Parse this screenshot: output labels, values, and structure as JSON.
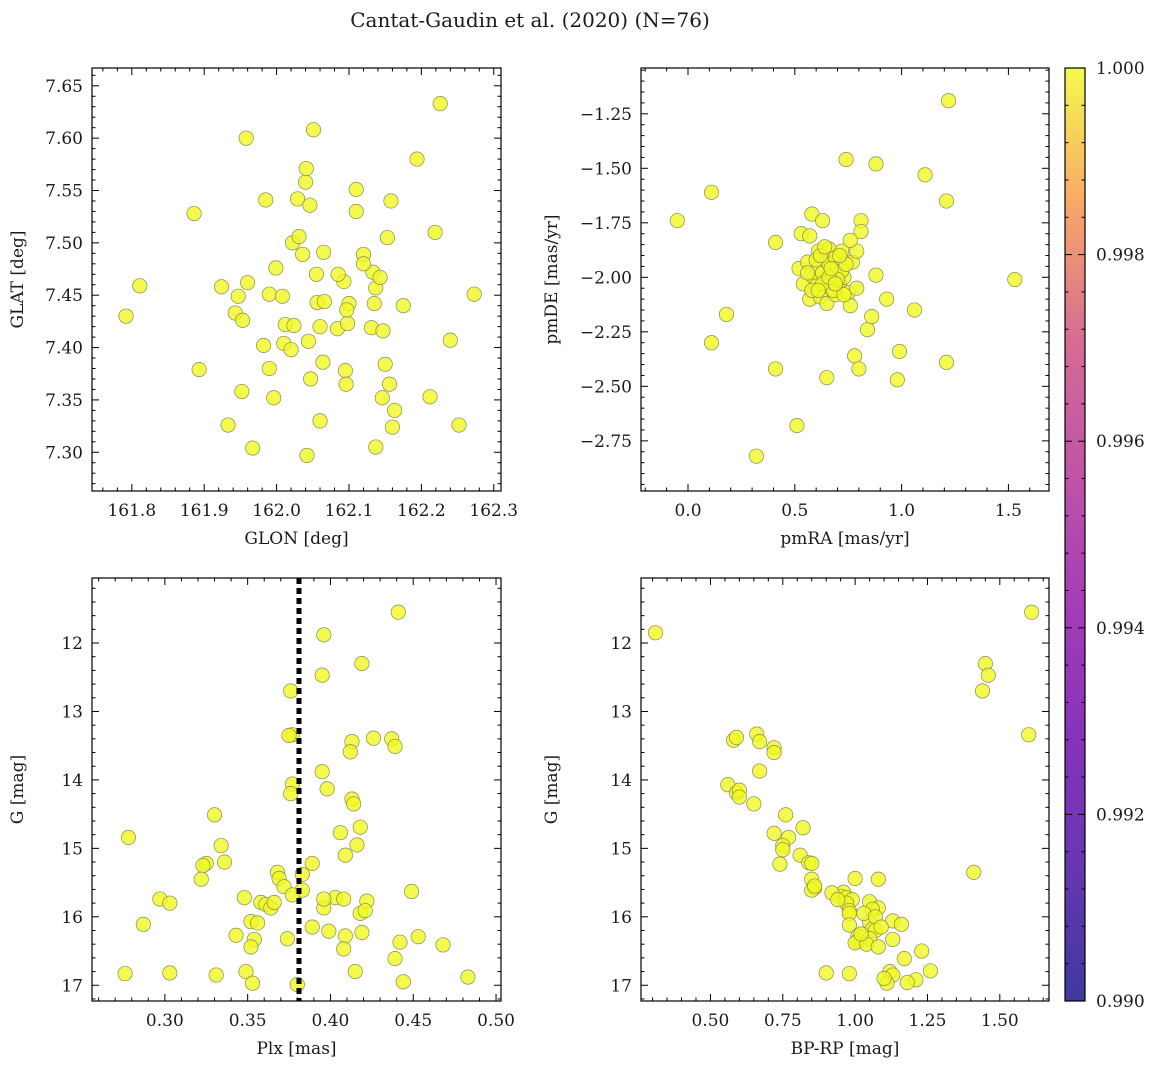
{
  "figure": {
    "title": "Cantat-Gaudin et al. (2020) (N=76)",
    "colorbar": {
      "ticks": [
        "0.990",
        "0.992",
        "0.994",
        "0.996",
        "0.998",
        "1.000"
      ],
      "range": [
        0.99,
        1.0
      ],
      "colormap": "plasma"
    },
    "marker_color": "#f0f921",
    "marker_edge": "#8a8a5a"
  },
  "chart_data": [
    {
      "type": "scatter",
      "id": "glon-glat",
      "xlabel": "GLON [deg]",
      "ylabel": "GLAT [deg]",
      "xlim": [
        161.745,
        162.31
      ],
      "ylim": [
        7.263,
        7.667
      ],
      "xticks": [
        161.8,
        161.9,
        162.0,
        162.1,
        162.2,
        162.3
      ],
      "yticks": [
        7.3,
        7.35,
        7.4,
        7.45,
        7.5,
        7.55,
        7.6,
        7.65
      ],
      "xtick_labels": [
        "161.8",
        "161.9",
        "162.0",
        "162.1",
        "162.2",
        "162.3"
      ],
      "ytick_labels": [
        "7.30",
        "7.35",
        "7.40",
        "7.45",
        "7.50",
        "7.55",
        "7.60",
        "7.65"
      ],
      "points": [
        [
          161.792,
          7.43
        ],
        [
          161.811,
          7.459
        ],
        [
          161.886,
          7.528
        ],
        [
          161.893,
          7.379
        ],
        [
          161.924,
          7.458
        ],
        [
          161.933,
          7.326
        ],
        [
          161.943,
          7.433
        ],
        [
          161.947,
          7.449
        ],
        [
          161.952,
          7.358
        ],
        [
          161.953,
          7.426
        ],
        [
          161.958,
          7.6
        ],
        [
          161.96,
          7.462
        ],
        [
          161.967,
          7.304
        ],
        [
          161.982,
          7.402
        ],
        [
          161.985,
          7.541
        ],
        [
          161.99,
          7.451
        ],
        [
          161.996,
          7.352
        ],
        [
          161.999,
          7.476
        ],
        [
          162.008,
          7.449
        ],
        [
          162.01,
          7.404
        ],
        [
          162.012,
          7.422
        ],
        [
          162.02,
          7.398
        ],
        [
          162.022,
          7.5
        ],
        [
          162.024,
          7.421
        ],
        [
          162.029,
          7.542
        ],
        [
          162.031,
          7.506
        ],
        [
          162.036,
          7.489
        ],
        [
          162.04,
          7.558
        ],
        [
          162.041,
          7.571
        ],
        [
          162.042,
          7.297
        ],
        [
          162.044,
          7.406
        ],
        [
          162.046,
          7.536
        ],
        [
          162.047,
          7.37
        ],
        [
          162.051,
          7.608
        ],
        [
          162.055,
          7.47
        ],
        [
          162.056,
          7.443
        ],
        [
          162.06,
          7.33
        ],
        [
          162.064,
          7.386
        ],
        [
          162.065,
          7.491
        ],
        [
          162.066,
          7.444
        ],
        [
          162.084,
          7.418
        ],
        [
          162.093,
          7.463
        ],
        [
          162.095,
          7.378
        ],
        [
          162.096,
          7.365
        ],
        [
          162.098,
          7.423
        ],
        [
          162.1,
          7.442
        ],
        [
          162.097,
          7.436
        ],
        [
          162.11,
          7.551
        ],
        [
          162.11,
          7.53
        ],
        [
          162.12,
          7.489
        ],
        [
          162.131,
          7.419
        ],
        [
          162.133,
          7.472
        ],
        [
          162.135,
          7.442
        ],
        [
          162.137,
          7.457
        ],
        [
          162.137,
          7.305
        ],
        [
          162.143,
          7.467
        ],
        [
          162.146,
          7.352
        ],
        [
          162.147,
          7.416
        ],
        [
          162.15,
          7.384
        ],
        [
          162.153,
          7.505
        ],
        [
          162.156,
          7.365
        ],
        [
          162.158,
          7.54
        ],
        [
          162.16,
          7.324
        ],
        [
          162.163,
          7.34
        ],
        [
          162.194,
          7.58
        ],
        [
          162.212,
          7.353
        ],
        [
          162.219,
          7.51
        ],
        [
          162.226,
          7.633
        ],
        [
          162.24,
          7.407
        ],
        [
          162.252,
          7.326
        ],
        [
          162.273,
          7.451
        ],
        [
          162.12,
          7.48
        ],
        [
          162.085,
          7.47
        ],
        [
          162.06,
          7.42
        ],
        [
          161.99,
          7.38
        ],
        [
          162.175,
          7.44
        ]
      ]
    },
    {
      "type": "scatter",
      "id": "pmra-pmde",
      "xlabel": "pmRA [mas/yr]",
      "ylabel": "pmDE [mas/yr]",
      "xlim": [
        -0.22,
        1.69
      ],
      "ylim": [
        -2.98,
        -1.04
      ],
      "xticks": [
        0.0,
        0.5,
        1.0,
        1.5
      ],
      "yticks": [
        -2.75,
        -2.5,
        -2.25,
        -2.0,
        -1.75,
        -1.5,
        -1.25
      ],
      "xtick_labels": [
        "0.0",
        "0.5",
        "1.0",
        "1.5"
      ],
      "ytick_labels": [
        "−2.75",
        "−2.50",
        "−2.25",
        "−2.00",
        "−1.75",
        "−1.50",
        "−1.25"
      ],
      "points": [
        [
          -0.05,
          -1.74
        ],
        [
          0.11,
          -1.61
        ],
        [
          0.11,
          -2.3
        ],
        [
          0.18,
          -2.17
        ],
        [
          0.32,
          -2.82
        ],
        [
          0.41,
          -1.84
        ],
        [
          0.41,
          -2.42
        ],
        [
          0.51,
          -2.68
        ],
        [
          0.52,
          -1.96
        ],
        [
          0.53,
          -1.8
        ],
        [
          0.54,
          -2.03
        ],
        [
          0.56,
          -1.93
        ],
        [
          0.57,
          -2.1
        ],
        [
          0.57,
          -1.81
        ],
        [
          0.58,
          -1.71
        ],
        [
          0.59,
          -2.0
        ],
        [
          0.6,
          -2.04
        ],
        [
          0.61,
          -1.96
        ],
        [
          0.61,
          -1.88
        ],
        [
          0.62,
          -2.09
        ],
        [
          0.63,
          -1.74
        ],
        [
          0.63,
          -1.98
        ],
        [
          0.64,
          -1.92
        ],
        [
          0.65,
          -2.02
        ],
        [
          0.65,
          -2.46
        ],
        [
          0.65,
          -2.12
        ],
        [
          0.66,
          -1.87
        ],
        [
          0.66,
          -1.94
        ],
        [
          0.67,
          -2.05
        ],
        [
          0.68,
          -1.99
        ],
        [
          0.69,
          -1.91
        ],
        [
          0.69,
          -2.08
        ],
        [
          0.7,
          -1.96
        ],
        [
          0.71,
          -2.03
        ],
        [
          0.72,
          -1.88
        ],
        [
          0.73,
          -2.0
        ],
        [
          0.74,
          -1.46
        ],
        [
          0.75,
          -2.07
        ],
        [
          0.76,
          -2.13
        ],
        [
          0.77,
          -1.93
        ],
        [
          0.78,
          -2.36
        ],
        [
          0.79,
          -1.88
        ],
        [
          0.8,
          -2.42
        ],
        [
          0.81,
          -1.74
        ],
        [
          0.81,
          -1.79
        ],
        [
          0.84,
          -2.24
        ],
        [
          0.86,
          -2.18
        ],
        [
          0.88,
          -1.48
        ],
        [
          0.88,
          -1.99
        ],
        [
          0.93,
          -2.1
        ],
        [
          0.98,
          -2.47
        ],
        [
          0.99,
          -2.34
        ],
        [
          1.06,
          -2.15
        ],
        [
          1.11,
          -1.53
        ],
        [
          1.21,
          -1.65
        ],
        [
          1.21,
          -2.39
        ],
        [
          1.22,
          -1.19
        ],
        [
          1.53,
          -2.01
        ],
        [
          0.6,
          -1.92
        ],
        [
          0.68,
          -2.06
        ],
        [
          0.72,
          -1.97
        ],
        [
          0.76,
          -1.83
        ],
        [
          0.63,
          -2.03
        ],
        [
          0.7,
          -2.01
        ],
        [
          0.58,
          -2.06
        ],
        [
          0.66,
          -2.0
        ],
        [
          0.74,
          -1.94
        ],
        [
          0.79,
          -2.05
        ],
        [
          0.62,
          -1.9
        ],
        [
          0.67,
          -1.96
        ],
        [
          0.71,
          -1.9
        ],
        [
          0.56,
          -1.98
        ],
        [
          0.73,
          -2.08
        ],
        [
          0.64,
          -1.86
        ],
        [
          0.69,
          -2.03
        ],
        [
          0.61,
          -2.06
        ]
      ]
    },
    {
      "type": "scatter",
      "id": "plx-g",
      "xlabel": "Plx [mas]",
      "ylabel": "G [mag]",
      "xlim": [
        0.256,
        0.503
      ],
      "ylim": [
        17.23,
        11.05
      ],
      "xticks": [
        0.3,
        0.35,
        0.4,
        0.45,
        0.5
      ],
      "yticks": [
        12,
        13,
        14,
        15,
        16,
        17
      ],
      "xtick_labels": [
        "0.30",
        "0.35",
        "0.40",
        "0.45",
        "0.50"
      ],
      "ytick_labels": [
        "12",
        "13",
        "14",
        "15",
        "16",
        "17"
      ],
      "reference_line": 0.381,
      "points": [
        [
          0.441,
          11.55
        ],
        [
          0.396,
          11.88
        ],
        [
          0.419,
          12.3
        ],
        [
          0.395,
          12.47
        ],
        [
          0.376,
          12.7
        ],
        [
          0.377,
          13.34
        ],
        [
          0.375,
          13.35
        ],
        [
          0.426,
          13.39
        ],
        [
          0.437,
          13.4
        ],
        [
          0.439,
          13.51
        ],
        [
          0.413,
          13.44
        ],
        [
          0.412,
          13.59
        ],
        [
          0.395,
          13.88
        ],
        [
          0.377,
          14.06
        ],
        [
          0.398,
          14.13
        ],
        [
          0.376,
          14.2
        ],
        [
          0.413,
          14.28
        ],
        [
          0.414,
          14.35
        ],
        [
          0.33,
          14.51
        ],
        [
          0.418,
          14.69
        ],
        [
          0.406,
          14.77
        ],
        [
          0.278,
          14.84
        ],
        [
          0.334,
          14.96
        ],
        [
          0.416,
          14.95
        ],
        [
          0.409,
          15.1
        ],
        [
          0.336,
          15.2
        ],
        [
          0.325,
          15.22
        ],
        [
          0.323,
          15.25
        ],
        [
          0.389,
          15.22
        ],
        [
          0.368,
          15.35
        ],
        [
          0.383,
          15.38
        ],
        [
          0.369,
          15.44
        ],
        [
          0.322,
          15.45
        ],
        [
          0.372,
          15.56
        ],
        [
          0.449,
          15.63
        ],
        [
          0.383,
          15.61
        ],
        [
          0.297,
          15.74
        ],
        [
          0.348,
          15.72
        ],
        [
          0.403,
          15.72
        ],
        [
          0.422,
          15.77
        ],
        [
          0.358,
          15.79
        ],
        [
          0.361,
          15.82
        ],
        [
          0.303,
          15.8
        ],
        [
          0.364,
          15.87
        ],
        [
          0.396,
          15.87
        ],
        [
          0.418,
          15.95
        ],
        [
          0.421,
          15.91
        ],
        [
          0.352,
          16.07
        ],
        [
          0.287,
          16.11
        ],
        [
          0.356,
          16.09
        ],
        [
          0.389,
          16.15
        ],
        [
          0.399,
          16.21
        ],
        [
          0.409,
          16.28
        ],
        [
          0.419,
          16.23
        ],
        [
          0.343,
          16.27
        ],
        [
          0.453,
          16.29
        ],
        [
          0.354,
          16.33
        ],
        [
          0.374,
          16.32
        ],
        [
          0.442,
          16.37
        ],
        [
          0.352,
          16.44
        ],
        [
          0.468,
          16.41
        ],
        [
          0.408,
          16.47
        ],
        [
          0.439,
          16.61
        ],
        [
          0.349,
          16.8
        ],
        [
          0.415,
          16.8
        ],
        [
          0.276,
          16.83
        ],
        [
          0.303,
          16.82
        ],
        [
          0.331,
          16.85
        ],
        [
          0.483,
          16.88
        ],
        [
          0.444,
          16.95
        ],
        [
          0.38,
          16.99
        ],
        [
          0.353,
          16.97
        ],
        [
          0.377,
          15.68
        ],
        [
          0.396,
          15.74
        ],
        [
          0.366,
          15.79
        ],
        [
          0.408,
          15.74
        ]
      ]
    },
    {
      "type": "scatter",
      "id": "bprp-g",
      "xlabel": "BP-RP [mag]",
      "ylabel": "G [mag]",
      "xlim": [
        0.26,
        1.67
      ],
      "ylim": [
        17.23,
        11.05
      ],
      "xticks": [
        0.5,
        0.75,
        1.0,
        1.25,
        1.5
      ],
      "yticks": [
        12,
        13,
        14,
        15,
        16,
        17
      ],
      "xtick_labels": [
        "0.50",
        "0.75",
        "1.00",
        "1.25",
        "1.50"
      ],
      "ytick_labels": [
        "12",
        "13",
        "14",
        "15",
        "16",
        "17"
      ],
      "points": [
        [
          0.31,
          11.85
        ],
        [
          1.61,
          11.55
        ],
        [
          1.45,
          12.3
        ],
        [
          1.46,
          12.47
        ],
        [
          1.44,
          12.7
        ],
        [
          1.6,
          13.34
        ],
        [
          0.66,
          13.33
        ],
        [
          0.58,
          13.42
        ],
        [
          0.59,
          13.38
        ],
        [
          0.67,
          13.44
        ],
        [
          0.72,
          13.53
        ],
        [
          0.72,
          13.6
        ],
        [
          0.67,
          13.87
        ],
        [
          0.56,
          14.07
        ],
        [
          0.59,
          14.19
        ],
        [
          0.6,
          14.15
        ],
        [
          0.6,
          14.25
        ],
        [
          0.65,
          14.35
        ],
        [
          0.76,
          14.51
        ],
        [
          0.82,
          14.7
        ],
        [
          0.72,
          14.78
        ],
        [
          0.77,
          14.84
        ],
        [
          0.75,
          14.96
        ],
        [
          0.75,
          15.02
        ],
        [
          0.81,
          15.1
        ],
        [
          0.84,
          15.21
        ],
        [
          0.85,
          15.22
        ],
        [
          0.74,
          15.23
        ],
        [
          1.41,
          15.35
        ],
        [
          0.85,
          15.45
        ],
        [
          1.0,
          15.44
        ],
        [
          1.08,
          15.45
        ],
        [
          0.86,
          15.58
        ],
        [
          0.85,
          15.61
        ],
        [
          0.96,
          15.64
        ],
        [
          0.95,
          15.7
        ],
        [
          0.97,
          15.72
        ],
        [
          1.05,
          15.78
        ],
        [
          0.99,
          15.75
        ],
        [
          0.97,
          15.8
        ],
        [
          1.08,
          15.87
        ],
        [
          1.06,
          15.89
        ],
        [
          0.98,
          15.91
        ],
        [
          0.98,
          15.95
        ],
        [
          1.13,
          16.06
        ],
        [
          1.05,
          16.08
        ],
        [
          1.16,
          16.11
        ],
        [
          0.98,
          16.12
        ],
        [
          1.06,
          16.18
        ],
        [
          1.07,
          16.2
        ],
        [
          1.01,
          16.28
        ],
        [
          1.02,
          16.3
        ],
        [
          1.01,
          16.35
        ],
        [
          1.05,
          16.32
        ],
        [
          1.13,
          16.33
        ],
        [
          1.0,
          16.38
        ],
        [
          1.04,
          16.4
        ],
        [
          1.08,
          16.44
        ],
        [
          1.23,
          16.5
        ],
        [
          1.17,
          16.61
        ],
        [
          0.9,
          16.82
        ],
        [
          0.98,
          16.83
        ],
        [
          1.12,
          16.8
        ],
        [
          1.13,
          16.85
        ],
        [
          1.26,
          16.79
        ],
        [
          1.21,
          16.92
        ],
        [
          1.18,
          16.96
        ],
        [
          1.11,
          16.97
        ],
        [
          1.1,
          16.9
        ],
        [
          0.86,
          15.55
        ],
        [
          0.92,
          15.65
        ],
        [
          1.03,
          15.95
        ],
        [
          1.07,
          16.0
        ],
        [
          0.94,
          15.75
        ],
        [
          1.02,
          16.25
        ],
        [
          1.09,
          16.15
        ]
      ]
    }
  ]
}
